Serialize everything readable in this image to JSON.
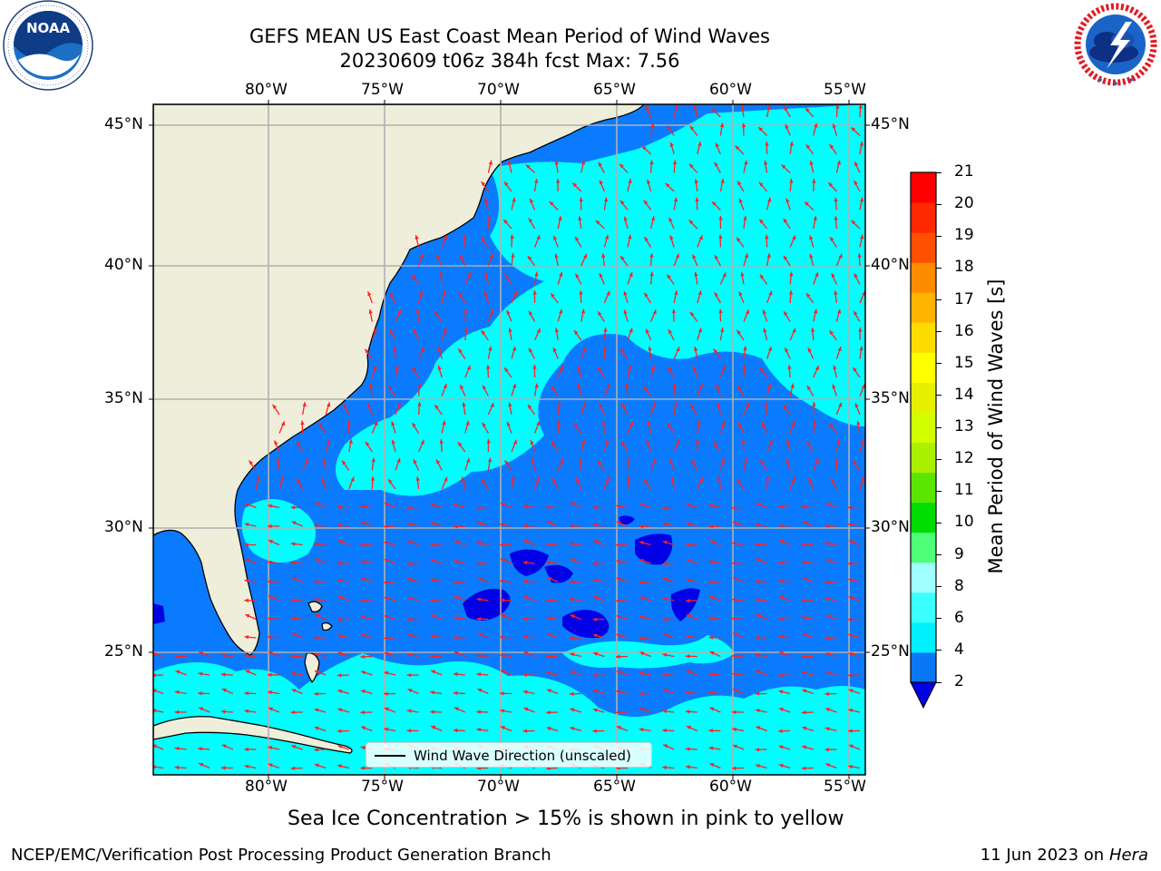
{
  "title": {
    "line1": "GEFS MEAN US East Coast Mean Period of Wind Waves",
    "line2": "20230609 t06z 384h fcst   Max: 7.56"
  },
  "logos": {
    "left": "NOAA",
    "left_ring": "NATIONAL OCEANIC AND ATMOSPHERIC ADMINISTRATION · U.S. DEPARTMENT OF COMMERCE",
    "right_ring": "NATIONAL WEATHER SERVICE"
  },
  "map": {
    "lon_labels": [
      "80°W",
      "75°W",
      "70°W",
      "65°W",
      "60°W",
      "55°W"
    ],
    "lat_labels": [
      "45°N",
      "40°N",
      "35°N",
      "30°N",
      "25°N"
    ],
    "colors": {
      "land": "#efeedb",
      "ocean_low": "#0a7bff",
      "ocean_mid": "#00ffff",
      "ocean_min": "#0000e6",
      "arrows": "#ff0000",
      "grid": "#b0b0b0"
    }
  },
  "legend": {
    "label": "Wind Wave Direction (unscaled)"
  },
  "colorbar": {
    "label": "Mean Period of Wind Waves [s]",
    "ticks": [
      "2",
      "4",
      "6",
      "8",
      "9",
      "10",
      "11",
      "12",
      "13",
      "14",
      "15",
      "16",
      "17",
      "18",
      "19",
      "20",
      "21"
    ],
    "colors": [
      "#0a78f5",
      "#00f0ff",
      "#3cffff",
      "#a0ffff",
      "#50ff78",
      "#00dc00",
      "#5ae600",
      "#aaf000",
      "#d2ff00",
      "#e6f000",
      "#ffff00",
      "#ffdc00",
      "#ffb400",
      "#ff8c00",
      "#ff5000",
      "#ff2800",
      "#ff0000"
    ],
    "extend_color": "#0000e6"
  },
  "note": "Sea Ice Concentration > 15% is shown in pink to yellow",
  "footer": {
    "left": "NCEP/EMC/Verification Post Processing Product Generation Branch",
    "right_date": "11 Jun 2023 on",
    "right_host": "Hera"
  }
}
